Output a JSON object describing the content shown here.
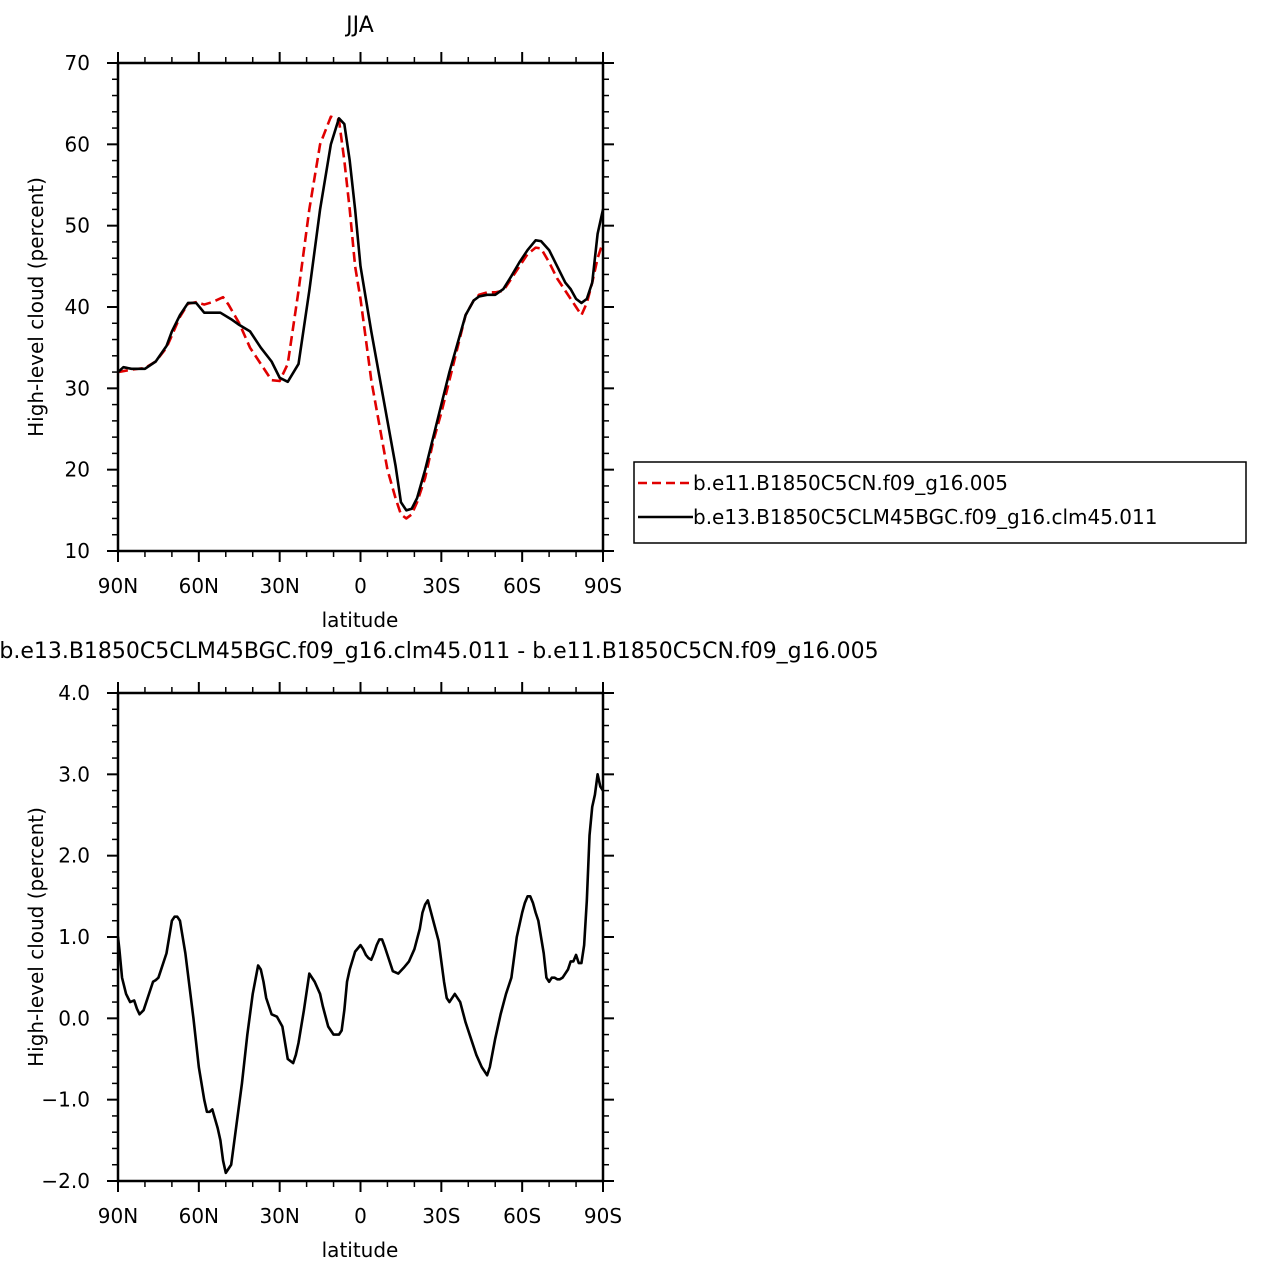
{
  "chart_data": [
    {
      "type": "line",
      "title": "JJA",
      "xlabel": "latitude",
      "ylabel": "High-level cloud (percent)",
      "xlim": [
        90,
        -90
      ],
      "ylim": [
        10,
        70
      ],
      "xtick_values": [
        90,
        60,
        30,
        0,
        -30,
        -60,
        -90
      ],
      "xtick_labels": [
        "90N",
        "60N",
        "30N",
        "0",
        "30S",
        "60S",
        "90S"
      ],
      "ytick_values": [
        10,
        20,
        30,
        40,
        50,
        60,
        70
      ],
      "ytick_labels": [
        "10",
        "20",
        "30",
        "40",
        "50",
        "60",
        "70"
      ],
      "legend_position": "right",
      "series": [
        {
          "name": "b.e11.B1850C5CN.f09_g16.005",
          "color": "#e00000",
          "dash": "dashed",
          "x": [
            90,
            85,
            80,
            76,
            72,
            70,
            67,
            64,
            61,
            58,
            55,
            51,
            49,
            45,
            41,
            37,
            33,
            30,
            27,
            23,
            19,
            15,
            11,
            8,
            6,
            4,
            2,
            0,
            -2,
            -4,
            -7,
            -10,
            -13,
            -15,
            -17,
            -19,
            -21,
            -24,
            -27,
            -30,
            -33,
            -36,
            -39,
            -42,
            -44,
            -47,
            -50,
            -53,
            -56,
            -59,
            -62,
            -65,
            -67,
            -70,
            -73,
            -76,
            -78,
            -80,
            -82,
            -84,
            -86,
            -88,
            -90
          ],
          "y": [
            32,
            32.3,
            32.5,
            33.3,
            35,
            36.5,
            38.8,
            40.4,
            40.6,
            40.3,
            40.6,
            41.2,
            40.3,
            38,
            35,
            33,
            31,
            30.9,
            33,
            42,
            52,
            60,
            63.4,
            63,
            58,
            52,
            45,
            41,
            36,
            31,
            25.5,
            20,
            16.5,
            14.5,
            14,
            14.5,
            16,
            19,
            23.5,
            27,
            31,
            35,
            39,
            40.8,
            41.5,
            41.8,
            41.8,
            42,
            43.5,
            45,
            46.5,
            47.3,
            47.2,
            45.5,
            43.5,
            42,
            41,
            40,
            39,
            40.5,
            43,
            46,
            48
          ]
        },
        {
          "name": "b.e13.B1850C5CLM45BGC.f09_g16.clm45.011",
          "color": "#000000",
          "dash": "solid",
          "x": [
            90,
            88,
            85,
            80,
            76,
            72,
            70,
            67,
            64,
            61,
            58,
            55,
            52,
            48,
            45,
            41,
            37,
            33,
            30,
            27,
            23,
            19,
            15,
            11,
            8,
            6,
            4,
            2,
            0,
            -2,
            -4,
            -7,
            -10,
            -13,
            -15,
            -17,
            -19,
            -21,
            -24,
            -27,
            -30,
            -33,
            -36,
            -39,
            -42,
            -44,
            -47,
            -50,
            -53,
            -56,
            -59,
            -62,
            -65,
            -67,
            -70,
            -73,
            -76,
            -78,
            -80,
            -82,
            -84,
            -86,
            -88,
            -90
          ],
          "y": [
            32,
            32.6,
            32.4,
            32.4,
            33.3,
            35.2,
            37,
            39,
            40.5,
            40.5,
            39.3,
            39.3,
            39.3,
            38.5,
            37.8,
            37,
            35,
            33.3,
            31.3,
            30.8,
            33,
            42,
            52,
            60,
            63.2,
            62.5,
            58,
            52,
            45,
            41,
            37,
            31.5,
            26,
            20.5,
            16,
            15,
            15.2,
            16.5,
            20,
            24,
            28,
            32,
            35.5,
            39,
            40.8,
            41.3,
            41.5,
            41.5,
            42.2,
            43.8,
            45.5,
            47,
            48.2,
            48.1,
            47,
            45,
            43,
            42.2,
            41,
            40.5,
            41,
            43,
            49,
            52
          ]
        }
      ]
    },
    {
      "type": "line",
      "title": "b.e13.B1850C5CLM45BGC.f09_g16.clm45.011 - b.e11.B1850C5CN.f09_g16.005",
      "xlabel": "latitude",
      "ylabel": "High-level cloud (percent)",
      "xlim": [
        90,
        -90
      ],
      "ylim": [
        -2,
        4
      ],
      "xtick_values": [
        90,
        60,
        30,
        0,
        -30,
        -60,
        -90
      ],
      "xtick_labels": [
        "90N",
        "60N",
        "30N",
        "0",
        "30S",
        "60S",
        "90S"
      ],
      "ytick_values": [
        -2,
        -1,
        0,
        1,
        2,
        3,
        4
      ],
      "ytick_labels": [
        "−2.0",
        "−1.0",
        "0.0",
        "1.0",
        "2.0",
        "3.0",
        "4.0"
      ],
      "series": [
        {
          "name": "",
          "color": "#000000",
          "dash": "solid",
          "x": [
            90,
            89.5,
            88.5,
            87,
            85.5,
            84,
            83,
            82,
            80.5,
            79,
            78,
            77,
            76,
            75,
            74,
            72,
            71,
            70,
            69,
            68,
            67,
            65,
            62,
            60,
            58,
            57,
            56,
            55,
            53,
            52,
            51,
            50,
            48,
            46,
            44,
            42,
            40,
            38,
            37,
            36,
            35,
            33,
            31,
            29,
            27,
            25,
            24,
            23,
            21,
            19,
            17,
            15,
            14,
            12,
            10,
            8,
            7,
            6,
            5,
            4,
            2,
            0,
            -1,
            -2,
            -3,
            -4,
            -5,
            -6,
            -7,
            -8,
            -9,
            -10,
            -12,
            -14,
            -16,
            -18,
            -20,
            -22,
            -23,
            -24,
            -25,
            -27,
            -29,
            -30,
            -31,
            -32,
            -33,
            -35,
            -37,
            -39,
            -41,
            -43,
            -45,
            -46,
            -47,
            -48,
            -50,
            -52,
            -54,
            -56,
            -58,
            -60,
            -61,
            -62,
            -63,
            -64,
            -65,
            -66,
            -68,
            -69,
            -70,
            -71,
            -72,
            -73,
            -74,
            -75,
            -77,
            -78,
            -79,
            -80,
            -81,
            -82,
            -83,
            -84,
            -85,
            -86,
            -87,
            -88,
            -89,
            -90
          ],
          "y": [
            1.0,
            0.85,
            0.5,
            0.3,
            0.2,
            0.22,
            0.12,
            0.05,
            0.1,
            0.25,
            0.35,
            0.45,
            0.47,
            0.5,
            0.6,
            0.8,
            1.0,
            1.2,
            1.25,
            1.25,
            1.2,
            0.8,
            0.0,
            -0.6,
            -1.0,
            -1.15,
            -1.15,
            -1.12,
            -1.35,
            -1.5,
            -1.75,
            -1.9,
            -1.8,
            -1.3,
            -0.8,
            -0.2,
            0.3,
            0.65,
            0.6,
            0.45,
            0.25,
            0.05,
            0.02,
            -0.1,
            -0.5,
            -0.55,
            -0.45,
            -0.3,
            0.1,
            0.55,
            0.45,
            0.3,
            0.15,
            -0.1,
            -0.2,
            -0.2,
            -0.15,
            0.1,
            0.45,
            0.6,
            0.82,
            0.9,
            0.85,
            0.78,
            0.74,
            0.72,
            0.8,
            0.9,
            0.97,
            0.97,
            0.88,
            0.78,
            0.58,
            0.55,
            0.62,
            0.7,
            0.85,
            1.1,
            1.3,
            1.4,
            1.45,
            1.2,
            0.95,
            0.7,
            0.45,
            0.25,
            0.2,
            0.3,
            0.2,
            -0.05,
            -0.25,
            -0.45,
            -0.6,
            -0.65,
            -0.7,
            -0.6,
            -0.25,
            0.05,
            0.3,
            0.5,
            1.0,
            1.3,
            1.42,
            1.5,
            1.5,
            1.42,
            1.3,
            1.2,
            0.8,
            0.5,
            0.45,
            0.5,
            0.5,
            0.48,
            0.48,
            0.5,
            0.6,
            0.7,
            0.7,
            0.78,
            0.68,
            0.68,
            0.9,
            1.45,
            2.25,
            2.6,
            2.75,
            3.0,
            2.85,
            2.8
          ]
        }
      ]
    }
  ]
}
